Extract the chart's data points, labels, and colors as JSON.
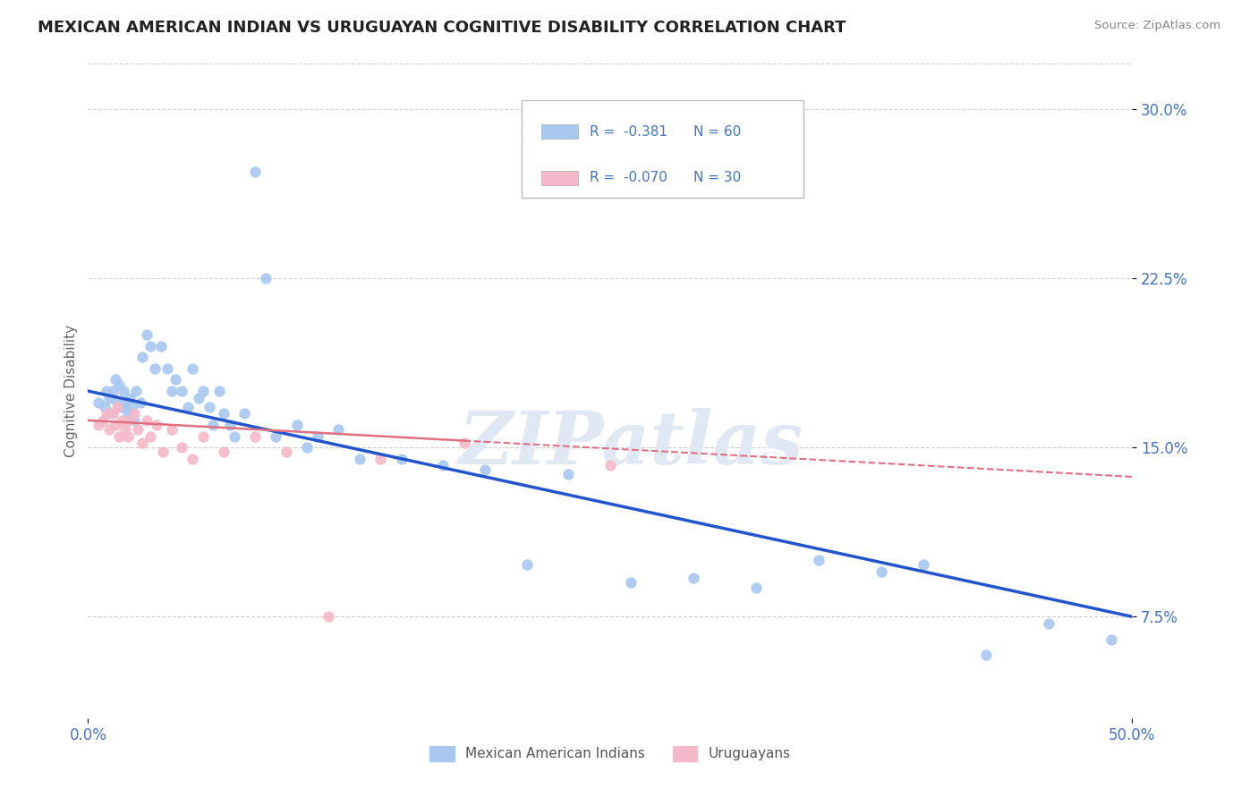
{
  "title": "MEXICAN AMERICAN INDIAN VS URUGUAYAN COGNITIVE DISABILITY CORRELATION CHART",
  "source_text": "Source: ZipAtlas.com",
  "ylabel": "Cognitive Disability",
  "xlim": [
    0.0,
    0.5
  ],
  "ylim": [
    0.03,
    0.32
  ],
  "xtick_labels": [
    "0.0%",
    "50.0%"
  ],
  "xtick_positions": [
    0.0,
    0.5
  ],
  "ytick_labels": [
    "7.5%",
    "15.0%",
    "22.5%",
    "30.0%"
  ],
  "ytick_positions": [
    0.075,
    0.15,
    0.225,
    0.3
  ],
  "grid_color": "#d0d0d0",
  "background_color": "#ffffff",
  "watermark": "ZIPatlas",
  "watermark_color": "#e0e8f4",
  "series1_color": "#a8c8f0",
  "series2_color": "#f4b8c8",
  "series1_label": "Mexican American Indians",
  "series2_label": "Uruguayans",
  "legend_R1": "R =  -0.381",
  "legend_N1": "N = 60",
  "legend_R2": "R =  -0.070",
  "legend_N2": "N = 30",
  "trend1_color": "#2255cc",
  "trend2_color": "#e07080",
  "tick_label_color": "#4472c4",
  "title_fontsize": 13,
  "series1_x": [
    0.005,
    0.008,
    0.009,
    0.01,
    0.011,
    0.012,
    0.013,
    0.014,
    0.015,
    0.016,
    0.017,
    0.018,
    0.019,
    0.02,
    0.021,
    0.022,
    0.023,
    0.025,
    0.026,
    0.028,
    0.03,
    0.032,
    0.035,
    0.038,
    0.04,
    0.042,
    0.045,
    0.048,
    0.05,
    0.053,
    0.055,
    0.058,
    0.06,
    0.063,
    0.065,
    0.068,
    0.07,
    0.075,
    0.08,
    0.085,
    0.09,
    0.1,
    0.105,
    0.11,
    0.12,
    0.13,
    0.15,
    0.17,
    0.19,
    0.21,
    0.23,
    0.26,
    0.29,
    0.32,
    0.35,
    0.38,
    0.4,
    0.43,
    0.46,
    0.49
  ],
  "series1_y": [
    0.17,
    0.168,
    0.175,
    0.172,
    0.165,
    0.175,
    0.18,
    0.17,
    0.178,
    0.168,
    0.175,
    0.17,
    0.165,
    0.172,
    0.168,
    0.162,
    0.175,
    0.17,
    0.19,
    0.2,
    0.195,
    0.185,
    0.195,
    0.185,
    0.175,
    0.18,
    0.175,
    0.168,
    0.185,
    0.172,
    0.175,
    0.168,
    0.16,
    0.175,
    0.165,
    0.16,
    0.155,
    0.165,
    0.272,
    0.225,
    0.155,
    0.16,
    0.15,
    0.155,
    0.158,
    0.145,
    0.145,
    0.142,
    0.14,
    0.098,
    0.138,
    0.09,
    0.092,
    0.088,
    0.1,
    0.095,
    0.098,
    0.058,
    0.072,
    0.065
  ],
  "series2_x": [
    0.005,
    0.007,
    0.009,
    0.01,
    0.012,
    0.013,
    0.014,
    0.015,
    0.016,
    0.018,
    0.019,
    0.02,
    0.022,
    0.024,
    0.026,
    0.028,
    0.03,
    0.033,
    0.036,
    0.04,
    0.045,
    0.05,
    0.055,
    0.065,
    0.08,
    0.095,
    0.115,
    0.14,
    0.18,
    0.25
  ],
  "series2_y": [
    0.16,
    0.162,
    0.165,
    0.158,
    0.165,
    0.16,
    0.168,
    0.155,
    0.162,
    0.158,
    0.155,
    0.162,
    0.165,
    0.158,
    0.152,
    0.162,
    0.155,
    0.16,
    0.148,
    0.158,
    0.15,
    0.145,
    0.155,
    0.148,
    0.155,
    0.148,
    0.075,
    0.145,
    0.152,
    0.142
  ],
  "trend1_x_start": 0.0,
  "trend1_y_start": 0.175,
  "trend1_x_end": 0.5,
  "trend1_y_end": 0.075,
  "trend2_x_start": 0.0,
  "trend2_y_start": 0.162,
  "trend2_x_end": 0.5,
  "trend2_y_end": 0.137,
  "trend2_solid_x_end": 0.18
}
